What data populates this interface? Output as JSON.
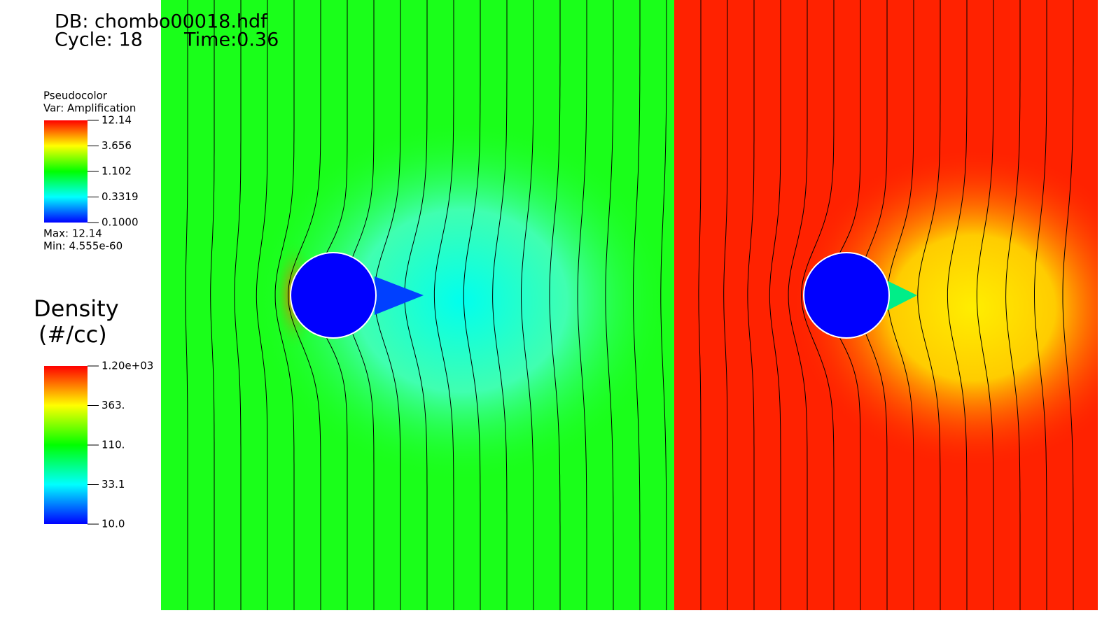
{
  "header": {
    "db": "DB: chombo00018.hdf",
    "cycle": "Cycle: 18",
    "time": "Time:0.36"
  },
  "legend_amplification": {
    "plot": "Pseudocolor",
    "var": "Var: Amplification",
    "ticks": [
      "12.14",
      "3.656",
      "1.102",
      "0.3319",
      "0.1000"
    ],
    "max": "Max:  12.14",
    "min": "Min:  4.555e-60"
  },
  "legend_density": {
    "title": "Density",
    "units": "(#/cc)",
    "ticks": [
      "1.20e+03",
      "363.",
      "110.",
      "33.1",
      "10.0"
    ]
  }
}
